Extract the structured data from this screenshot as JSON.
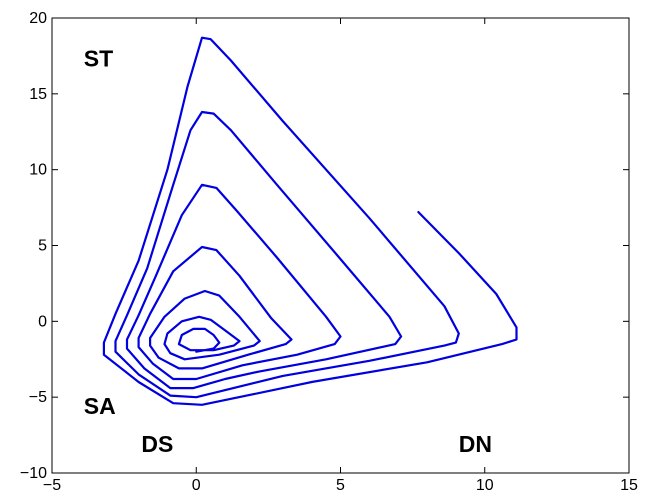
{
  "chart_data": {
    "type": "line",
    "title": "",
    "xlabel": "",
    "ylabel": "",
    "xlim": [
      -5,
      15
    ],
    "ylim": [
      -10,
      20
    ],
    "x_ticks": [
      -5,
      0,
      5,
      10,
      15
    ],
    "y_ticks": [
      -10,
      -5,
      0,
      5,
      10,
      15,
      20
    ],
    "x_tick_labels": [
      "−5",
      "0",
      "5",
      "10",
      "15"
    ],
    "y_tick_labels": [
      "−10",
      "−5",
      "0",
      "5",
      "10",
      "15",
      "20"
    ],
    "grid": false,
    "line_color": "#0000e0",
    "series": [
      {
        "points": [
          [
            7.7,
            7.2
          ],
          [
            9.1,
            4.5
          ],
          [
            10.4,
            1.8
          ],
          [
            11.1,
            -0.4
          ],
          [
            11.1,
            -1.2
          ],
          [
            10.6,
            -1.5
          ],
          [
            8.0,
            -2.7
          ],
          [
            4.0,
            -4.0
          ],
          [
            2.0,
            -4.8
          ],
          [
            0.2,
            -5.5
          ],
          [
            -0.8,
            -5.4
          ],
          [
            -2.0,
            -4.0
          ],
          [
            -3.2,
            -2.2
          ],
          [
            -3.2,
            -1.4
          ],
          [
            -2.8,
            0.5
          ],
          [
            -2.0,
            4.0
          ],
          [
            -1.0,
            10.0
          ],
          [
            -0.3,
            15.5
          ],
          [
            0.2,
            18.7
          ],
          [
            0.5,
            18.6
          ],
          [
            1.2,
            17.2
          ],
          [
            3.0,
            13.2
          ],
          [
            6.0,
            6.8
          ],
          [
            8.6,
            1.0
          ],
          [
            9.1,
            -0.8
          ],
          [
            9.0,
            -1.4
          ],
          [
            8.6,
            -1.6
          ],
          [
            6.0,
            -2.6
          ],
          [
            3.0,
            -3.6
          ],
          [
            1.5,
            -4.3
          ],
          [
            0.0,
            -5.0
          ],
          [
            -0.9,
            -4.9
          ],
          [
            -2.0,
            -3.5
          ],
          [
            -2.8,
            -2.0
          ],
          [
            -2.8,
            -1.3
          ],
          [
            -2.4,
            0.4
          ],
          [
            -1.7,
            3.5
          ],
          [
            -0.8,
            9.0
          ],
          [
            -0.2,
            12.6
          ],
          [
            0.2,
            13.8
          ],
          [
            0.6,
            13.7
          ],
          [
            1.2,
            12.6
          ],
          [
            2.8,
            9.0
          ],
          [
            5.0,
            4.1
          ],
          [
            6.7,
            0.3
          ],
          [
            7.1,
            -1.0
          ],
          [
            6.9,
            -1.5
          ],
          [
            4.5,
            -2.5
          ],
          [
            2.2,
            -3.3
          ],
          [
            1.0,
            -3.8
          ],
          [
            -0.1,
            -4.4
          ],
          [
            -0.9,
            -4.4
          ],
          [
            -1.8,
            -3.1
          ],
          [
            -2.4,
            -1.8
          ],
          [
            -2.4,
            -1.2
          ],
          [
            -2.0,
            0.4
          ],
          [
            -1.4,
            3.0
          ],
          [
            -0.5,
            7.0
          ],
          [
            0.2,
            9.0
          ],
          [
            0.7,
            8.8
          ],
          [
            1.4,
            7.3
          ],
          [
            2.8,
            4.2
          ],
          [
            4.5,
            0.3
          ],
          [
            5.0,
            -1.0
          ],
          [
            4.8,
            -1.5
          ],
          [
            3.5,
            -2.2
          ],
          [
            1.6,
            -2.9
          ],
          [
            0.0,
            -3.8
          ],
          [
            -0.8,
            -3.8
          ],
          [
            -1.5,
            -2.8
          ],
          [
            -2.0,
            -1.7
          ],
          [
            -2.0,
            -1.1
          ],
          [
            -1.6,
            0.5
          ],
          [
            -0.8,
            3.3
          ],
          [
            0.2,
            4.9
          ],
          [
            0.7,
            4.7
          ],
          [
            1.5,
            3.0
          ],
          [
            2.6,
            0.2
          ],
          [
            3.3,
            -1.2
          ],
          [
            3.1,
            -1.5
          ],
          [
            1.8,
            -2.2
          ],
          [
            0.2,
            -3.1
          ],
          [
            -0.6,
            -3.1
          ],
          [
            -1.3,
            -2.4
          ],
          [
            -1.6,
            -1.6
          ],
          [
            -1.6,
            -1.1
          ],
          [
            -1.1,
            0.3
          ],
          [
            -0.4,
            1.5
          ],
          [
            0.3,
            2.0
          ],
          [
            0.8,
            1.7
          ],
          [
            1.5,
            0.3
          ],
          [
            2.2,
            -1.3
          ],
          [
            2.0,
            -1.6
          ],
          [
            0.8,
            -2.2
          ],
          [
            -0.4,
            -2.5
          ],
          [
            -0.9,
            -2.1
          ],
          [
            -1.1,
            -1.5
          ],
          [
            -1.0,
            -0.8
          ],
          [
            -0.5,
            0.0
          ],
          [
            0.1,
            0.3
          ],
          [
            0.5,
            0.1
          ],
          [
            1.0,
            -0.6
          ],
          [
            1.5,
            -1.3
          ],
          [
            1.3,
            -1.6
          ],
          [
            0.6,
            -1.9
          ],
          [
            -0.2,
            -1.9
          ],
          [
            -0.6,
            -1.5
          ],
          [
            -0.5,
            -0.9
          ],
          [
            -0.1,
            -0.5
          ],
          [
            0.3,
            -0.5
          ],
          [
            0.6,
            -0.9
          ],
          [
            0.8,
            -1.4
          ],
          [
            0.6,
            -1.8
          ],
          [
            0.0,
            -2.0
          ]
        ]
      }
    ],
    "annotations": [
      {
        "text": "ST",
        "x": -3.9,
        "y": 16.8
      },
      {
        "text": "SA",
        "x": -3.9,
        "y": -6.1
      },
      {
        "text": "DS",
        "x": -1.9,
        "y": -8.6
      },
      {
        "text": "DN",
        "x": 9.1,
        "y": -8.6
      }
    ]
  }
}
